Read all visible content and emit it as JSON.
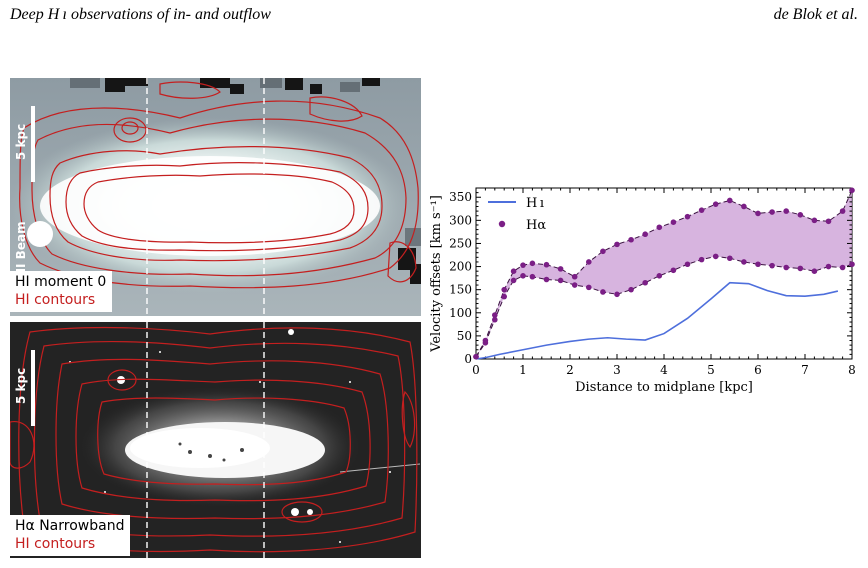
{
  "header": {
    "left": "Deep H ı observations of in- and outflow",
    "right": "de Blok et al."
  },
  "top_panel": {
    "scale_label": "5 kpc",
    "beam_label": "HI Beam",
    "legend_line1": "HI moment 0",
    "legend_line2": "HI contours"
  },
  "bottom_panel": {
    "scale_label": "5 kpc",
    "legend_line1": "Hα Narrowband",
    "legend_line2": "HI contours"
  },
  "colors": {
    "contour": "#c41f1f",
    "hi_line": "#4e6fdc",
    "halpha": "#7b1f86",
    "halpha_fill": "#c99bd4"
  },
  "chart_data": {
    "type": "line",
    "xlabel": "Distance to midplane [kpc]",
    "ylabel": "Velocity offsets [km s⁻¹]",
    "xlim": [
      0,
      8
    ],
    "ylim": [
      0,
      370
    ],
    "xticks": [
      "0",
      "1",
      "2",
      "3",
      "4",
      "5",
      "6",
      "7",
      "8"
    ],
    "yticks": [
      "0",
      "50",
      "100",
      "150",
      "200",
      "250",
      "300",
      "350"
    ],
    "legend_position": "top-left",
    "legend": [
      "H ı",
      "Hα"
    ],
    "series": [
      {
        "name": "H ı",
        "style": "line",
        "x": [
          0.0,
          0.2,
          0.5,
          1.0,
          1.5,
          2.0,
          2.4,
          2.8,
          3.2,
          3.6,
          4.0,
          4.5,
          5.0,
          5.4,
          5.8,
          6.2,
          6.6,
          7.0,
          7.4,
          7.7
        ],
        "y": [
          0,
          3,
          10,
          20,
          30,
          38,
          43,
          46,
          43,
          41,
          55,
          88,
          130,
          165,
          163,
          148,
          137,
          136,
          140,
          147
        ]
      },
      {
        "name": "Hα",
        "style": "scatter",
        "upper_x": [
          0.0,
          0.2,
          0.4,
          0.6,
          0.8,
          1.0,
          1.2,
          1.5,
          1.8,
          2.1,
          2.4,
          2.7,
          3.0,
          3.3,
          3.6,
          3.9,
          4.2,
          4.5,
          4.8,
          5.1,
          5.4,
          5.7,
          6.0,
          6.3,
          6.6,
          6.9,
          7.2,
          7.5,
          7.8,
          8.0
        ],
        "upper_y": [
          5,
          40,
          95,
          150,
          190,
          203,
          207,
          204,
          195,
          178,
          210,
          233,
          248,
          258,
          270,
          285,
          296,
          308,
          322,
          335,
          343,
          330,
          315,
          318,
          320,
          312,
          300,
          298,
          320,
          365
        ],
        "lower_x": [
          0.0,
          0.2,
          0.4,
          0.6,
          0.8,
          1.0,
          1.2,
          1.5,
          1.8,
          2.1,
          2.4,
          2.7,
          3.0,
          3.3,
          3.6,
          3.9,
          4.2,
          4.5,
          4.8,
          5.1,
          5.4,
          5.7,
          6.0,
          6.3,
          6.6,
          6.9,
          7.2,
          7.5,
          7.8,
          8.0
        ],
        "lower_y": [
          5,
          35,
          85,
          135,
          170,
          180,
          178,
          172,
          170,
          160,
          155,
          145,
          140,
          150,
          165,
          180,
          192,
          205,
          215,
          222,
          218,
          210,
          205,
          202,
          198,
          196,
          190,
          200,
          198,
          205
        ]
      }
    ]
  }
}
